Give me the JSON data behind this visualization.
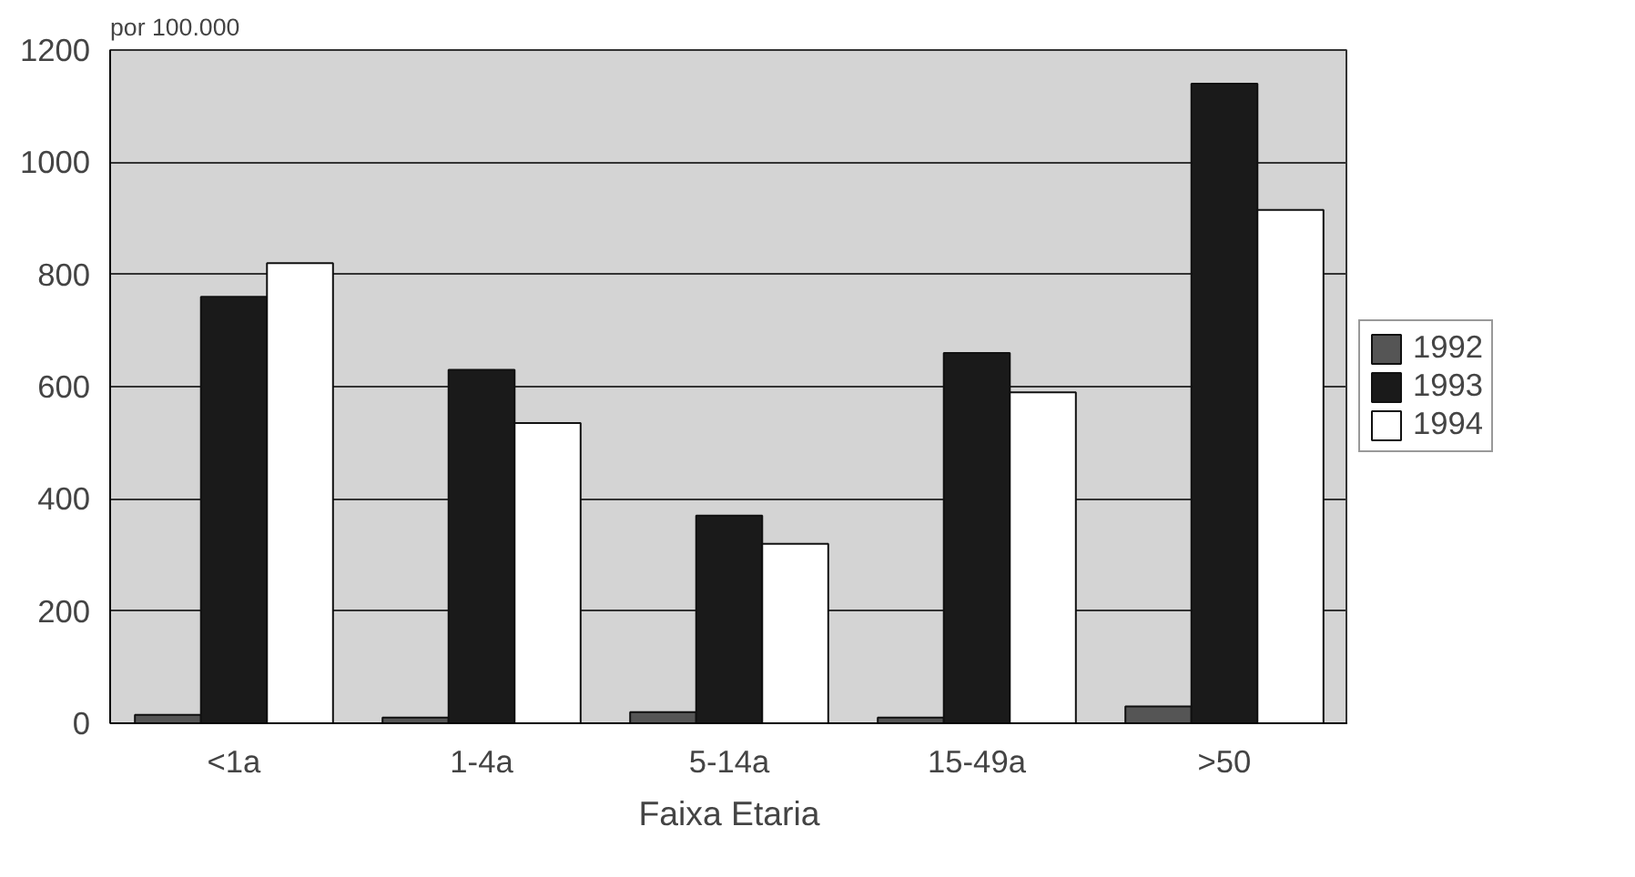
{
  "chart_data": {
    "type": "bar",
    "ylabel": "por 100.000",
    "xlabel": "Faixa Etaria",
    "categories": [
      "<1a",
      "1-4a",
      "5-14a",
      "15-49a",
      ">50"
    ],
    "series": [
      {
        "name": "1992",
        "color": "#555555",
        "values": [
          15,
          10,
          20,
          10,
          30
        ]
      },
      {
        "name": "1993",
        "color": "#1a1a1a",
        "values": [
          760,
          630,
          370,
          660,
          1140
        ]
      },
      {
        "name": "1994",
        "color": "#ffffff",
        "values": [
          820,
          535,
          320,
          590,
          915
        ]
      }
    ],
    "ylim": [
      0,
      1200
    ],
    "yticks": [
      0,
      200,
      400,
      600,
      800,
      1000,
      1200
    ],
    "grid": "y",
    "legend": "right"
  }
}
